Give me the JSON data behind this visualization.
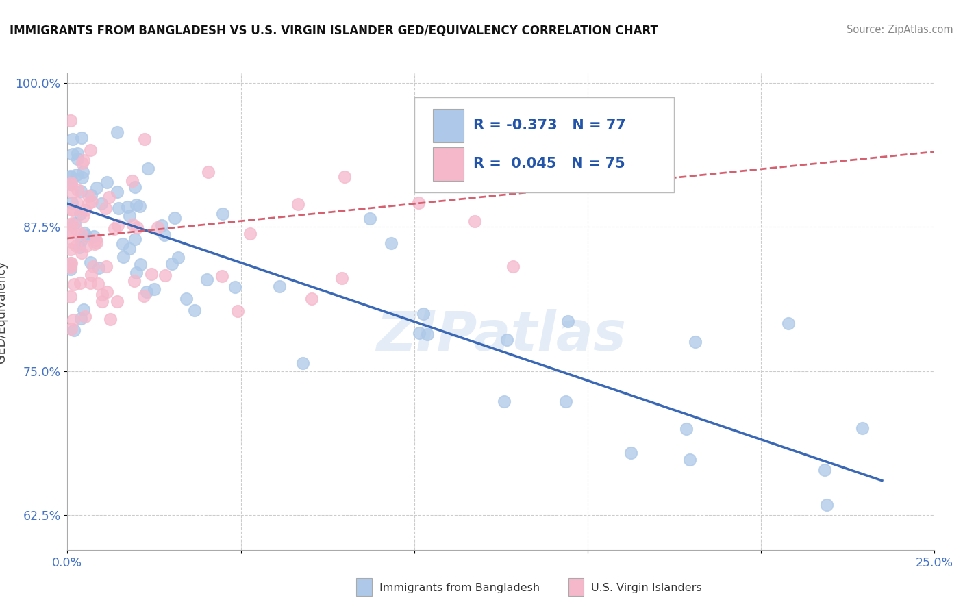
{
  "title": "IMMIGRANTS FROM BANGLADESH VS U.S. VIRGIN ISLANDER GED/EQUIVALENCY CORRELATION CHART",
  "source": "Source: ZipAtlas.com",
  "ylabel": "GED/Equivalency",
  "xlim": [
    0.0,
    0.25
  ],
  "ylim": [
    0.595,
    1.008
  ],
  "ytick_positions": [
    0.625,
    0.75,
    0.875,
    1.0
  ],
  "ytick_labels": [
    "62.5%",
    "75.0%",
    "87.5%",
    "100.0%"
  ],
  "legend_r_blue": "-0.373",
  "legend_n_blue": "77",
  "legend_r_pink": "0.045",
  "legend_n_pink": "75",
  "blue_color": "#adc8e8",
  "pink_color": "#f5b8cb",
  "trend_blue_color": "#3a68b5",
  "trend_pink_color": "#d46070",
  "watermark": "ZIPatlas",
  "blue_trend_x0": 0.0,
  "blue_trend_y0": 0.895,
  "blue_trend_x1": 0.235,
  "blue_trend_y1": 0.655,
  "pink_trend_x0": 0.0,
  "pink_trend_y0": 0.865,
  "pink_trend_x1": 0.25,
  "pink_trend_y1": 0.94
}
